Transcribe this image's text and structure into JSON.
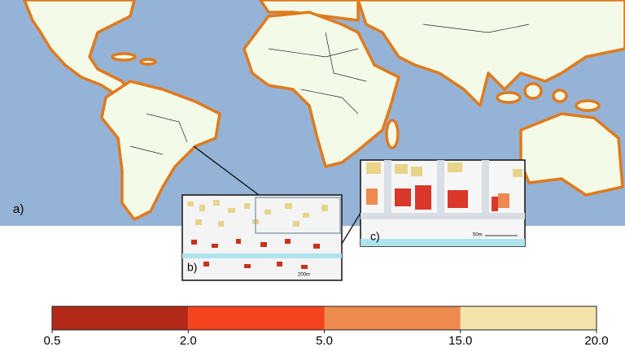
{
  "panels": {
    "a": "a)",
    "b": "b)",
    "c": "c)"
  },
  "scale_labels": {
    "b": "200m",
    "c": "50m"
  },
  "colorbar": {
    "boundaries": [
      0.5,
      {
        "value": 2,
        "label": "2.0"
      },
      {
        "value": 5,
        "label": "5.0"
      },
      {
        "value": 15,
        "label": "15.0"
      },
      {
        "value": 20,
        "label": "20.0"
      }
    ],
    "colors": [
      "#b22a17",
      "#f4431d",
      "#ee8a4f",
      "#f4e4ab"
    ]
  }
}
